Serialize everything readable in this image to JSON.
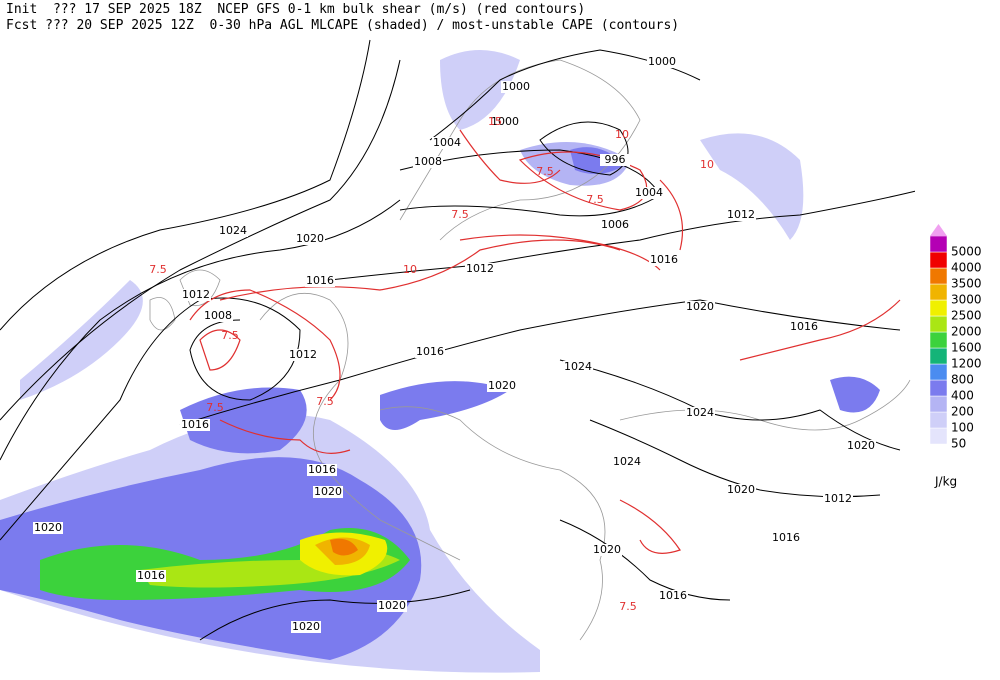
{
  "header": {
    "lines": [
      "Init  ??? 17 SEP 2025 18Z  NCEP GFS 0-1 km bulk shear (m/s) (red contours)",
      "Fcst ??? 20 SEP 2025 12Z  0-30 hPa AGL MLCAPE (shaded) / most-unstable CAPE (contours)"
    ]
  },
  "legend": {
    "unit": "J/kg",
    "top_color": "#f0a0f0",
    "levels": [
      {
        "label": "50",
        "color": "#e4e4fc"
      },
      {
        "label": "100",
        "color": "#cfcff8"
      },
      {
        "label": "200",
        "color": "#b4b4f4"
      },
      {
        "label": "400",
        "color": "#7b7bee"
      },
      {
        "label": "800",
        "color": "#4b8cf0"
      },
      {
        "label": "1200",
        "color": "#14b478"
      },
      {
        "label": "1600",
        "color": "#3cd23c"
      },
      {
        "label": "2000",
        "color": "#aae614"
      },
      {
        "label": "2500",
        "color": "#f0f000"
      },
      {
        "label": "3000",
        "color": "#f0b400"
      },
      {
        "label": "3500",
        "color": "#f07800"
      },
      {
        "label": "4000",
        "color": "#f00000"
      },
      {
        "label": "5000",
        "color": "#b400b4"
      }
    ]
  },
  "isobar_labels": [
    "1000",
    "1000",
    "1000",
    "1004",
    "1008",
    "996",
    "1004",
    "1006",
    "1012",
    "1024",
    "1020",
    "1016",
    "1012",
    "1016",
    "1012",
    "1008",
    "1020",
    "1016",
    "1012",
    "1016",
    "1024",
    "1020",
    "1024",
    "1016",
    "1020",
    "1024",
    "1016",
    "1020",
    "1020",
    "1012",
    "1020",
    "1016",
    "1020",
    "1016",
    "1016",
    "1020",
    "1020"
  ],
  "shear_labels": [
    "7.5",
    "7.5",
    "10",
    "15",
    "7.5",
    "7.5",
    "10",
    "7.5",
    "10",
    "7.5",
    "7.5",
    "7.5"
  ]
}
